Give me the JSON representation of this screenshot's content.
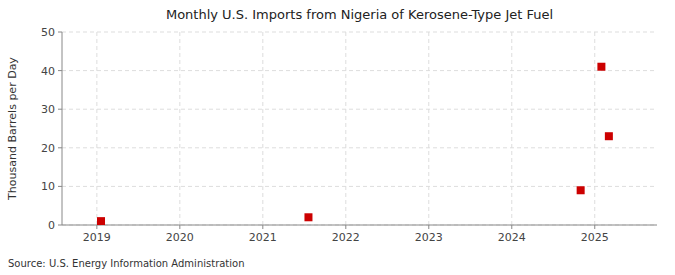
{
  "chart_data": {
    "type": "scatter",
    "title": "Monthly U.S. Imports from Nigeria of Kerosene-Type Jet Fuel",
    "y_label": "Thousand Barrels per Day",
    "annotation": "Source: U.S. Energy Information Administration",
    "x": [
      2019.05,
      2021.55,
      2024.83,
      2025.17,
      2025.08
    ],
    "values": [
      1.0,
      2.0,
      9.0,
      23.0,
      41.0
    ],
    "color": "#cc0000",
    "marker": "square",
    "xlim": [
      2018.58,
      2025.75
    ],
    "xticks": [
      2019,
      2020,
      2021,
      2022,
      2023,
      2024,
      2025
    ],
    "ylim": [
      0,
      50
    ],
    "yticks": [
      0,
      10,
      20,
      30,
      40,
      50
    ],
    "grid": true
  }
}
